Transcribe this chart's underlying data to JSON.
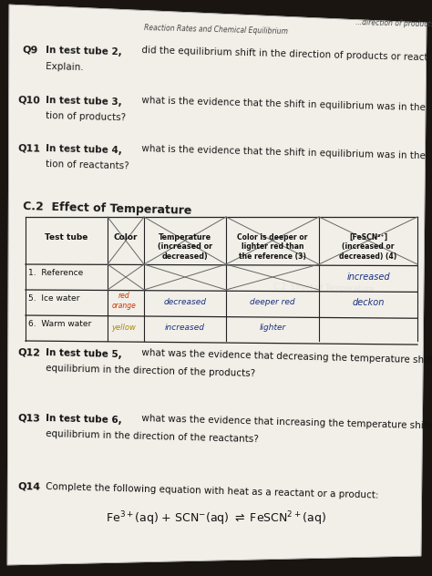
{
  "bg_color_top": "#2a2520",
  "bg_color": "#3a3530",
  "paper_color": "#f0ede6",
  "paper_color2": "#e8e5de",
  "header_text": "Reaction Rates and Chemical Equilibrium",
  "q9_bold": "Q9  In test tube 2,",
  "q9_text": " did the equilibrium shift in the direction of products or reactants?",
  "q9_text2": "     Explain.",
  "q10_bold": "Q10  In test tube 3,",
  "q10_text": " what is the evidence that the shift in equilibrium was in the direc-",
  "q10_text2": "     tion of products?",
  "q11_bold": "Q11  In test tube 4,",
  "q11_text": " what is the evidence that the shift in equilibrium was in the direc-",
  "q11_text2": "     tion of reactants?",
  "section_title": "C.2  Effect of Temperature",
  "q12_bold": "Q12  In test tube 5,",
  "q12_text": " what was the evidence that decreasing the temperature shifted the",
  "q12_text2": "     equilibrium in the direction of the products?",
  "q13_bold": "Q13  In test tube 6,",
  "q13_text": " what was the evidence that increasing the temperature shifted the",
  "q13_text2": "     equilibrium in the direction of the reactants?",
  "q14_bold": "Q14  ",
  "q14_text": "Complete the following equation with heat as a reactant or a product:",
  "handwrite_color": "#1a3080",
  "ink_color": "#0a0a6a",
  "text_color": "#1a1a1a",
  "table_line_color": "#333333"
}
